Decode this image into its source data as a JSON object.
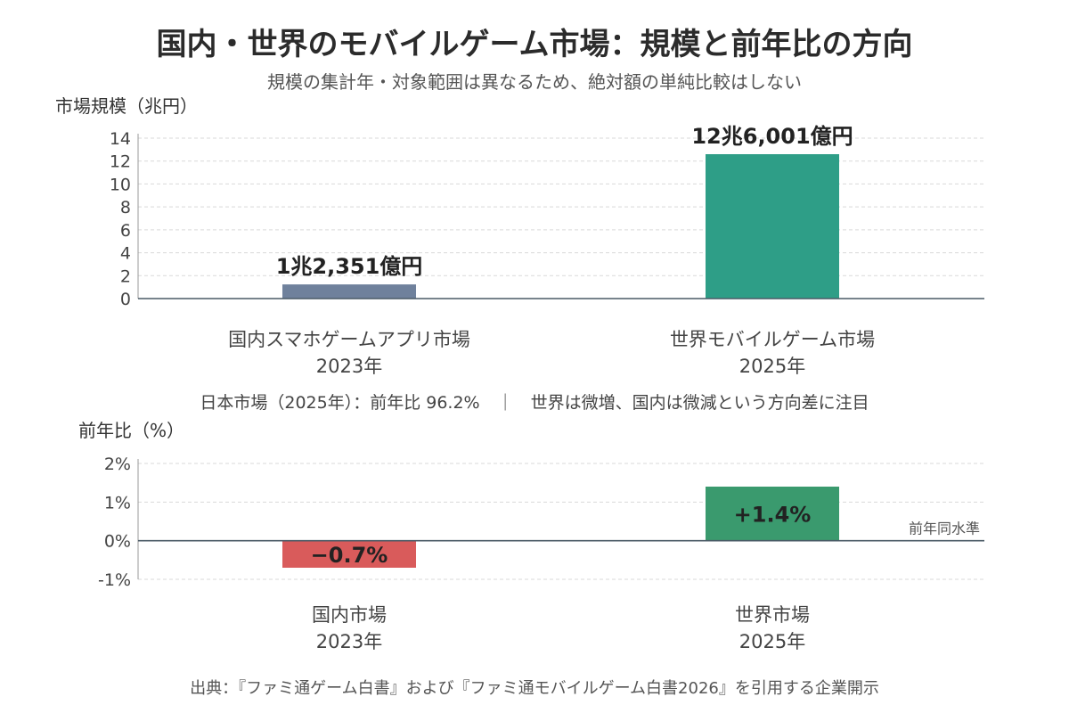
{
  "title": "国内・世界のモバイルゲーム市場：規模と前年比の方向",
  "subtitle": "規模の集計年・対象範囲は異なるため、絶対額の単純比較はしない",
  "caption": "日本市場（2025年）：前年比 96.2%　｜　世界は微増、国内は微減という方向差に注目",
  "source": "出典：『ファミ通ゲーム白書』および『ファミ通モバイルゲーム白書2026』を引用する企業開示",
  "chart_data": [
    {
      "type": "bar",
      "ylabel": "市場規模（兆円）",
      "ylim": [
        0,
        14
      ],
      "yticks": [
        "0",
        "2",
        "4",
        "6",
        "8",
        "10",
        "12",
        "14"
      ],
      "ytick_values": [
        0,
        2,
        4,
        6,
        8,
        10,
        12,
        14
      ],
      "grid": true,
      "categories": [
        {
          "line1": "国内スマホゲームアプリ市場",
          "line2": "2023年"
        },
        {
          "line1": "世界モバイルゲーム市場",
          "line2": "2025年"
        }
      ],
      "values": [
        1.2351,
        12.6001
      ],
      "data_labels": [
        "1兆2,351億円",
        "12兆6,001億円"
      ],
      "colors": [
        "#6f819c",
        "#2e9e87"
      ]
    },
    {
      "type": "bar",
      "ylabel": "前年比（%）",
      "ylim": [
        -1,
        2
      ],
      "yticks": [
        "-1%",
        "0%",
        "1%",
        "2%"
      ],
      "ytick_values": [
        -1,
        0,
        1,
        2
      ],
      "grid": true,
      "categories": [
        {
          "line1": "国内市場",
          "line2": "2023年"
        },
        {
          "line1": "世界市場",
          "line2": "2025年"
        }
      ],
      "values": [
        -0.7,
        1.4
      ],
      "data_labels": [
        "−0.7%",
        "+1.4%"
      ],
      "colors": [
        "#d95b5b",
        "#3a9a6e"
      ],
      "reference_line": {
        "value": 0,
        "label": "前年同水準"
      }
    }
  ]
}
